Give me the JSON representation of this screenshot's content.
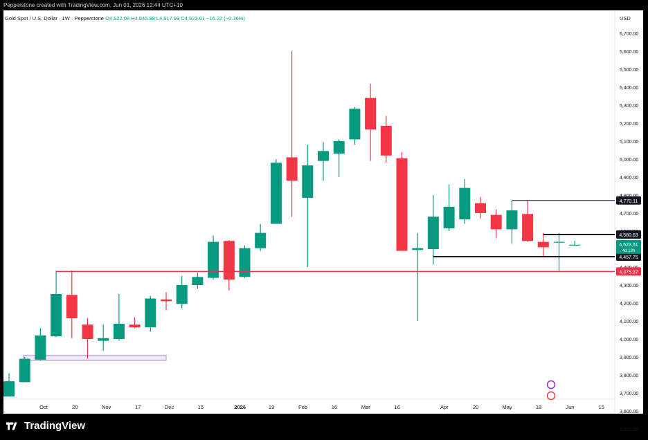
{
  "header": {
    "attribution": "Pepperstone created with TradingView.com, Jun 01, 2026 12:44 UTC+10",
    "symbol": "Gold Spot / U.S. Dollar · 1W · Pepperstone",
    "ohlc": "O4,522.08 H4,545.98 L4,517.93 C4,523.61 −16.22 (−0.36%)"
  },
  "footer": {
    "brand": "TradingView"
  },
  "colors": {
    "up": "#089981",
    "down": "#f23645",
    "support": "#e8344a",
    "zone": "#b39ddb",
    "line": "#131722"
  },
  "chart_data": {
    "type": "candlestick",
    "currency": "USD",
    "ylim": [
      3500,
      5800
    ],
    "y_ticks": [
      3500,
      3600,
      3700,
      3800,
      3900,
      4000,
      4100,
      4200,
      4300,
      4400,
      4500,
      4600,
      4700,
      4800,
      4900,
      5000,
      5100,
      5200,
      5300,
      5400,
      5500,
      5600,
      5700
    ],
    "y_tick_labels": [
      "3,500.00",
      "3,600.00",
      "3,700.00",
      "3,800.00",
      "3,900.00",
      "4,000.00",
      "4,100.00",
      "4,200.00",
      "4,300.00",
      "4,400.00",
      "4,500.00",
      "4,600.00",
      "4,700.00",
      "4,800.00",
      "4,900.00",
      "5,000.00",
      "5,100.00",
      "5,200.00",
      "5,300.00",
      "5,400.00",
      "5,500.00",
      "5,600.00",
      "5,700.00"
    ],
    "x_labels": [
      {
        "index": 2.2,
        "label": "Oct"
      },
      {
        "index": 4.2,
        "label": "20"
      },
      {
        "index": 6.2,
        "label": "Nov"
      },
      {
        "index": 8.2,
        "label": "17"
      },
      {
        "index": 10.2,
        "label": "Dec"
      },
      {
        "index": 12.2,
        "label": "15"
      },
      {
        "index": 14.7,
        "label": "2026"
      },
      {
        "index": 16.7,
        "label": "19"
      },
      {
        "index": 18.7,
        "label": "Feb"
      },
      {
        "index": 20.7,
        "label": "16"
      },
      {
        "index": 22.7,
        "label": "Mar"
      },
      {
        "index": 24.7,
        "label": "16"
      },
      {
        "index": 27.7,
        "label": "Apr"
      },
      {
        "index": 29.7,
        "label": "20"
      },
      {
        "index": 31.7,
        "label": "May"
      },
      {
        "index": 33.7,
        "label": "18"
      },
      {
        "index": 35.7,
        "label": "Jun"
      },
      {
        "index": 37.7,
        "label": "15"
      }
    ],
    "candles": [
      {
        "o": 3680,
        "h": 3810,
        "l": 3680,
        "c": 3765
      },
      {
        "o": 3760,
        "h": 3900,
        "l": 3760,
        "c": 3890
      },
      {
        "o": 3885,
        "h": 4060,
        "l": 3880,
        "c": 4020
      },
      {
        "o": 4015,
        "h": 4380,
        "l": 4010,
        "c": 4250
      },
      {
        "o": 4245,
        "h": 4380,
        "l": 4005,
        "c": 4115
      },
      {
        "o": 4080,
        "h": 4115,
        "l": 3890,
        "c": 4000
      },
      {
        "o": 3990,
        "h": 4080,
        "l": 3935,
        "c": 4005
      },
      {
        "o": 4000,
        "h": 4250,
        "l": 3990,
        "c": 4085
      },
      {
        "o": 4080,
        "h": 4120,
        "l": 4060,
        "c": 4065
      },
      {
        "o": 4065,
        "h": 4240,
        "l": 4040,
        "c": 4225
      },
      {
        "o": 4220,
        "h": 4260,
        "l": 4160,
        "c": 4210
      },
      {
        "o": 4195,
        "h": 4350,
        "l": 4170,
        "c": 4300
      },
      {
        "o": 4300,
        "h": 4370,
        "l": 4280,
        "c": 4345
      },
      {
        "o": 4340,
        "h": 4575,
        "l": 4330,
        "c": 4540
      },
      {
        "o": 4545,
        "h": 4550,
        "l": 4270,
        "c": 4330
      },
      {
        "o": 4345,
        "h": 4520,
        "l": 4340,
        "c": 4505
      },
      {
        "o": 4505,
        "h": 4640,
        "l": 4490,
        "c": 4590
      },
      {
        "o": 4640,
        "h": 5000,
        "l": 4640,
        "c": 4980
      },
      {
        "o": 5010,
        "h": 5600,
        "l": 4680,
        "c": 4880
      },
      {
        "o": 4785,
        "h": 5080,
        "l": 4400,
        "c": 4965
      },
      {
        "o": 4990,
        "h": 5095,
        "l": 4880,
        "c": 5045
      },
      {
        "o": 5030,
        "h": 5110,
        "l": 4900,
        "c": 5100
      },
      {
        "o": 5110,
        "h": 5290,
        "l": 5080,
        "c": 5280
      },
      {
        "o": 5340,
        "h": 5420,
        "l": 4990,
        "c": 5165
      },
      {
        "o": 5185,
        "h": 5240,
        "l": 4980,
        "c": 5020
      },
      {
        "o": 5005,
        "h": 5040,
        "l": 4490,
        "c": 4490
      },
      {
        "o": 4495,
        "h": 4590,
        "l": 4100,
        "c": 4505
      },
      {
        "o": 4500,
        "h": 4800,
        "l": 4415,
        "c": 4680
      },
      {
        "o": 4615,
        "h": 4860,
        "l": 4600,
        "c": 4735
      },
      {
        "o": 4665,
        "h": 4890,
        "l": 4640,
        "c": 4840
      },
      {
        "o": 4755,
        "h": 4790,
        "l": 4670,
        "c": 4700
      },
      {
        "o": 4690,
        "h": 4720,
        "l": 4560,
        "c": 4610
      },
      {
        "o": 4610,
        "h": 4770,
        "l": 4530,
        "c": 4715
      },
      {
        "o": 4695,
        "h": 4770,
        "l": 4540,
        "c": 4545
      },
      {
        "o": 4540,
        "h": 4590,
        "l": 4460,
        "c": 4510
      },
      {
        "o": 4540,
        "h": 4590,
        "l": 4375,
        "c": 4540
      },
      {
        "o": 4522,
        "h": 4546,
        "l": 4518,
        "c": 4524
      }
    ],
    "levels": [
      {
        "value": 4770.11,
        "label": "4,770.11",
        "style": "black",
        "from_index": 32
      },
      {
        "value": 4580.63,
        "label": "4,580.63",
        "style": "black",
        "from_index": 34
      },
      {
        "value": 4457.75,
        "label": "4,457.75",
        "style": "black",
        "from_index": 27
      },
      {
        "value": 4375.37,
        "label": "4,375.37",
        "style": "red",
        "from_index": 3
      }
    ],
    "current_price": {
      "label": "4,523.61",
      "countdown": "4d 19h",
      "value": 4523.61
    },
    "zone": {
      "from_index": 1,
      "to_index": 10,
      "low": 3880,
      "high": 3910
    }
  }
}
